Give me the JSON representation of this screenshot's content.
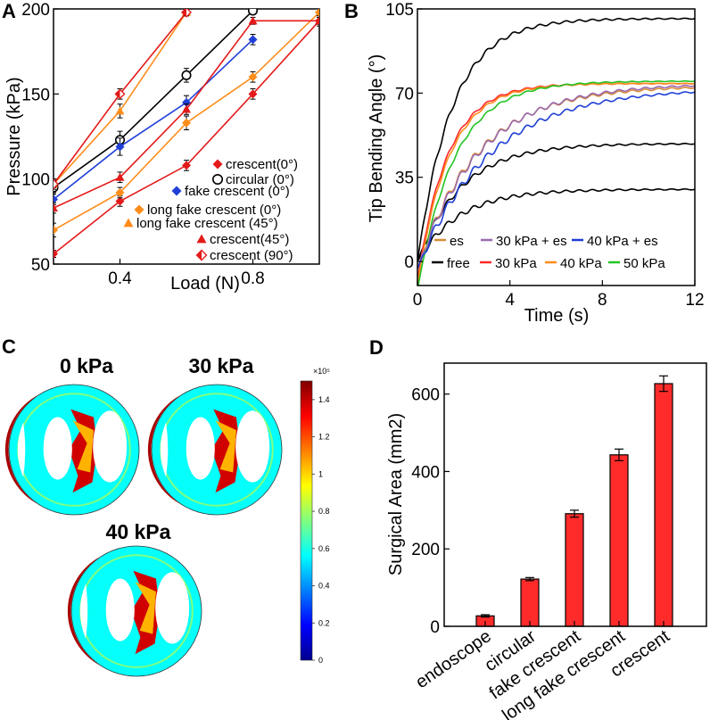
{
  "panels": {
    "a": "A",
    "b": "B",
    "c": "C",
    "d": "D"
  },
  "chart_data": [
    {
      "type": "line",
      "panel": "A",
      "xlabel": "Load (N)",
      "ylabel": "Pressure (kPa)",
      "xlim": [
        0.2,
        1.0
      ],
      "ylim": [
        50,
        200
      ],
      "xticks": [
        "0.4",
        "0.8"
      ],
      "xtick_values": [
        0.4,
        0.8
      ],
      "yticks": [
        "50",
        "100",
        "150",
        "200"
      ],
      "ytick_values": [
        50,
        100,
        150,
        200
      ],
      "legend": [
        "crescent(0°)",
        "circular (0°)",
        "fake crescent (0°)",
        "long fake crescent (0°)",
        "long fake crescent (45°)",
        "crescent(45°)",
        "crescent (90°)"
      ],
      "series": [
        {
          "name": "crescent(0°)",
          "color": "#e41a1a",
          "marker": "diamond",
          "x": [
            0.2,
            0.4,
            0.6,
            0.8,
            1.0
          ],
          "y": [
            56,
            87,
            108,
            150,
            193
          ],
          "err": [
            1,
            2,
            2,
            2,
            2
          ]
        },
        {
          "name": "circular (0°)",
          "color": "#000000",
          "marker": "circle-open",
          "x": [
            0.2,
            0.4,
            0.6,
            0.8
          ],
          "y": [
            95,
            123,
            161,
            199
          ],
          "err": [
            2,
            4,
            3,
            1
          ]
        },
        {
          "name": "fake crescent (0°)",
          "color": "#1f3fd6",
          "marker": "diamond",
          "x": [
            0.2,
            0.4,
            0.6,
            0.8
          ],
          "y": [
            88,
            119,
            145,
            182
          ],
          "err": [
            2,
            4,
            3,
            2
          ]
        },
        {
          "name": "long fake crescent (0°)",
          "color": "#ff8c1a",
          "marker": "diamond",
          "x": [
            0.2,
            0.4,
            0.6,
            0.8,
            1.0
          ],
          "y": [
            70,
            92,
            133,
            160,
            198
          ],
          "err": [
            3,
            2,
            3,
            2,
            1
          ]
        },
        {
          "name": "long fake crescent (45°)",
          "color": "#ff8c1a",
          "marker": "triangle",
          "x": [
            0.2,
            0.4,
            0.6
          ],
          "y": [
            97,
            140,
            198
          ],
          "err": [
            2,
            3,
            1
          ]
        },
        {
          "name": "crescent(45°)",
          "color": "#e41a1a",
          "marker": "triangle",
          "x": [
            0.2,
            0.4,
            0.6,
            0.8,
            1.0
          ],
          "y": [
            83,
            101,
            141,
            193,
            193
          ],
          "err": [
            2,
            2,
            2,
            1,
            1
          ]
        },
        {
          "name": "crescent (90°)",
          "color": "#e41a1a",
          "marker": "diamond-half",
          "x": [
            0.2,
            0.4,
            0.6
          ],
          "y": [
            97,
            150,
            198
          ],
          "err": [
            1,
            2,
            1
          ]
        }
      ]
    },
    {
      "type": "line",
      "panel": "B",
      "xlabel": "Time (s)",
      "ylabel": "Tip Bending Angle (°)",
      "xlim": [
        0,
        12
      ],
      "ylim": [
        -10,
        105
      ],
      "xticks": [
        "0",
        "4",
        "8",
        "12"
      ],
      "xtick_values": [
        0,
        4,
        8,
        12
      ],
      "yticks": [
        "0",
        "35",
        "70",
        "105"
      ],
      "ytick_values": [
        0,
        35,
        70,
        105
      ],
      "legend": [
        "es",
        "30 kPa + es",
        "40 kPa + es",
        "free",
        "30 kPa",
        "40 kPa",
        "50 kPa"
      ],
      "series": [
        {
          "name": "free",
          "color": "#000000",
          "plateau": [
            0,
            30,
            49,
            101
          ],
          "tau": [
            1.8,
            1.9,
            1.5
          ]
        },
        {
          "name": "30 kPa",
          "color": "#ff2a2a",
          "plateau": 74,
          "tau": 1.3
        },
        {
          "name": "40 kPa",
          "color": "#ff8c1a",
          "plateau": 74,
          "tau": 1.35
        },
        {
          "name": "50 kPa",
          "color": "#22c422",
          "plateau": 75,
          "tau": 1.6
        },
        {
          "name": "es",
          "color": "#d98a3a",
          "plateau": 73,
          "tau": 2.6
        },
        {
          "name": "30 kPa + es",
          "color": "#9a6ab0",
          "plateau": 74,
          "tau": 2.7
        },
        {
          "name": "40 kPa + es",
          "color": "#1f3fd6",
          "plateau": 72,
          "tau": 3.1
        }
      ]
    },
    {
      "type": "heatmap",
      "panel": "C",
      "titles": [
        "0 kPa",
        "30 kPa",
        "40 kPa"
      ],
      "colorbar": {
        "multiplier": "×10⁵",
        "ticks": [
          "0",
          "0.2",
          "0.4",
          "0.6",
          "0.8",
          "1",
          "1.2",
          "1.4"
        ],
        "tick_values": [
          0,
          0.2,
          0.4,
          0.6,
          0.8,
          1.0,
          1.2,
          1.4
        ],
        "range": [
          0,
          1.5
        ]
      }
    },
    {
      "type": "bar",
      "panel": "D",
      "ylabel": "Surgical Area (mm2)",
      "categories": [
        "endoscope",
        "circular",
        "fake crescent",
        "long fake crescent",
        "crescent"
      ],
      "values": [
        27,
        122,
        291,
        443,
        627
      ],
      "err": [
        3,
        4,
        9,
        15,
        20
      ],
      "ylim": [
        0,
        680
      ],
      "yticks": [
        "0",
        "200",
        "400",
        "600"
      ],
      "ytick_values": [
        0,
        200,
        400,
        600
      ],
      "color": "#ff2b2b"
    }
  ]
}
